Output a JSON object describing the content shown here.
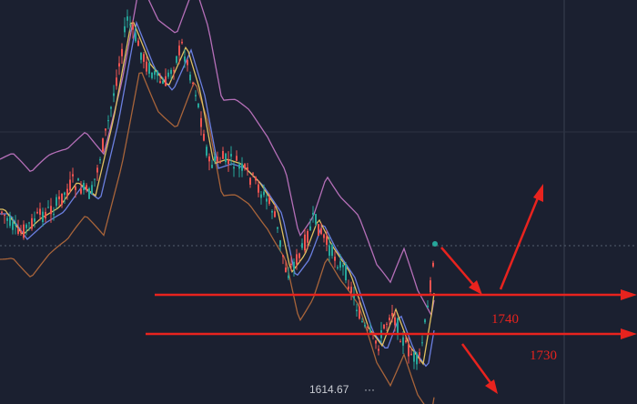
{
  "annotations": [
    {
      "label": "1740"
    },
    {
      "label": "1730"
    }
  ],
  "price_marker": "1614.67"
}
